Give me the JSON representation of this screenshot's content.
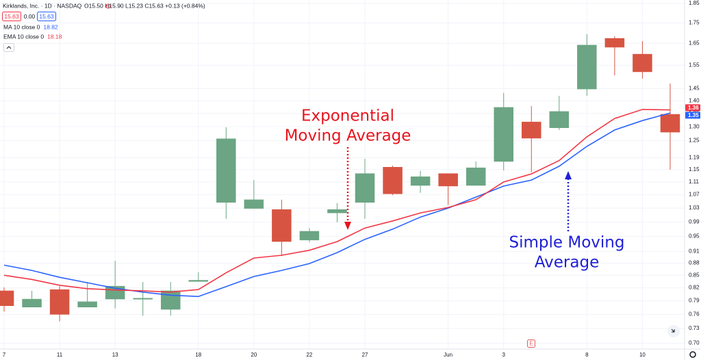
{
  "chart_data": {
    "type": "candlestick",
    "header": {
      "symbol": "Kirklands, Inc. · 1D · NASDAQ",
      "ohlc": "O15.50 H15.90 L15.23 C15.63 +0.13 (+0.84%)",
      "bid": "15.63",
      "spread": "0.00",
      "ask": "15.63"
    },
    "categories": [
      "7",
      null,
      "11",
      null,
      "13",
      null,
      null,
      "18",
      null,
      "20",
      null,
      "22",
      null,
      "27",
      null,
      null,
      "Jun",
      null,
      "3",
      null,
      null,
      "8",
      null,
      "10",
      null
    ],
    "open": [
      0.813,
      0.776,
      0.816,
      0.776,
      0.794,
      0.795,
      0.771,
      0.835,
      1.047,
      1.029,
      1.026,
      0.94,
      1.016,
      1.047,
      1.158,
      1.099,
      1.137,
      1.099,
      1.177,
      1.318,
      1.296,
      1.448,
      1.674,
      1.6,
      1.347
    ],
    "high": [
      0.821,
      0.813,
      0.824,
      0.834,
      0.886,
      0.834,
      0.834,
      0.857,
      1.298,
      1.116,
      1.055,
      0.973,
      1.045,
      1.186,
      1.163,
      1.146,
      1.137,
      1.177,
      1.432,
      1.379,
      1.42,
      1.694,
      1.684,
      1.661,
      1.471
    ],
    "low": [
      0.766,
      0.776,
      0.745,
      0.776,
      0.773,
      0.757,
      0.757,
      0.835,
      0.999,
      1.029,
      0.898,
      0.934,
      0.989,
      0.999,
      1.069,
      1.076,
      1.039,
      1.099,
      1.147,
      1.141,
      1.288,
      1.42,
      1.506,
      1.492,
      1.15
    ],
    "close": [
      0.779,
      0.794,
      0.76,
      0.788,
      0.824,
      0.796,
      0.813,
      0.838,
      1.256,
      1.055,
      0.936,
      0.964,
      1.026,
      1.137,
      1.073,
      1.127,
      1.097,
      1.156,
      1.374,
      1.258,
      1.358,
      1.642,
      1.632,
      1.521,
      1.28
    ],
    "up_color": "#6ba583",
    "down_color": "#d75442",
    "overlays": [
      {
        "name": "MA 10 close 0",
        "legend_value": "18.82",
        "color": "#2962ff",
        "last_label": "1.35",
        "values": [
          0.875,
          0.862,
          0.845,
          0.832,
          0.819,
          0.81,
          0.803,
          0.8,
          0.823,
          0.847,
          0.862,
          0.879,
          0.907,
          0.942,
          0.97,
          1.004,
          1.03,
          1.063,
          1.097,
          1.116,
          1.161,
          1.229,
          1.288,
          1.323,
          1.352
        ]
      },
      {
        "name": "EMA 10 close 0",
        "legend_value": "18.18",
        "color": "#f23645",
        "last_label": "1.36",
        "values": [
          0.85,
          0.84,
          0.826,
          0.818,
          0.815,
          0.813,
          0.81,
          0.816,
          0.856,
          0.893,
          0.9,
          0.913,
          0.936,
          0.973,
          0.993,
          1.016,
          1.032,
          1.055,
          1.11,
          1.136,
          1.18,
          1.263,
          1.331,
          1.366,
          1.364
        ]
      }
    ],
    "annotations": [
      {
        "lines": [
          "Exponential",
          "Moving Average"
        ],
        "color": "#e8141c"
      },
      {
        "lines": [
          "Simple Moving",
          "Average"
        ],
        "color": "#1f1fd6"
      }
    ],
    "earnings_marker": "E",
    "log_scale": true,
    "grid": true,
    "ylim": [
      0.691,
      1.868
    ],
    "yticks": [
      1.85,
      1.75,
      1.65,
      1.55,
      1.45,
      {
        "value": 1.4,
        "label": "1.40"
      },
      1.35,
      {
        "value": 1.3,
        "label": "1.30"
      },
      1.25,
      1.19,
      1.15,
      1.11,
      1.07,
      1.03,
      0.99,
      0.95,
      0.91,
      0.88,
      0.85,
      0.82,
      0.79,
      0.76,
      0.73,
      {
        "value": 0.7,
        "label": "0.70"
      }
    ]
  }
}
